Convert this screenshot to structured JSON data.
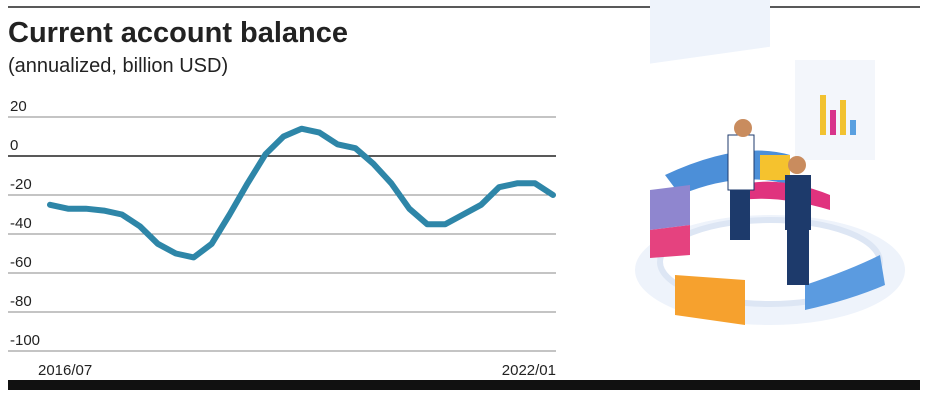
{
  "chart_data": {
    "type": "line",
    "title": "Current account balance",
    "subtitle": "(annualized, billion USD)",
    "categories": [
      "2016/07",
      null,
      null,
      null,
      null,
      null,
      null,
      null,
      null,
      null,
      null,
      null,
      null,
      null,
      null,
      null,
      null,
      null,
      null,
      null,
      null,
      null,
      null,
      null,
      null,
      null,
      null,
      null,
      "2022/01"
    ],
    "values": [
      -25,
      -27,
      -27,
      -28,
      -30,
      -36,
      -45,
      -50,
      -52,
      -45,
      -30,
      -14,
      1,
      10,
      14,
      12,
      6,
      4,
      -4,
      -14,
      -27,
      -35,
      -35,
      -30,
      -25,
      -16,
      -14,
      -14,
      -20
    ],
    "color": "#2e86a8",
    "ylim": [
      -100,
      20
    ],
    "yticks": [
      -100,
      -80,
      -60,
      -40,
      -20,
      0,
      20
    ],
    "grid": true
  }
}
